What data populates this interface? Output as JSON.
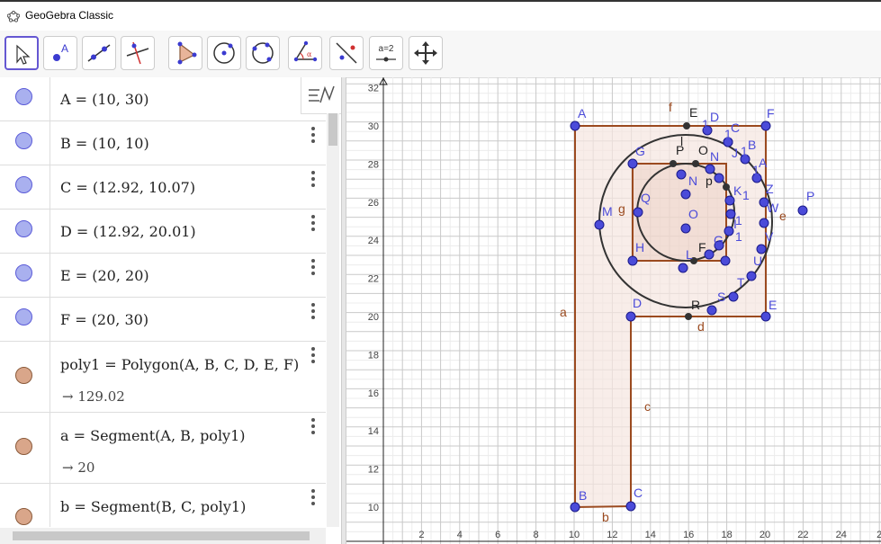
{
  "window": {
    "title": "GeoGebra Classic"
  },
  "toolbar": {
    "tools": [
      {
        "name": "move-tool",
        "label": ""
      },
      {
        "name": "point-tool",
        "label": ""
      },
      {
        "name": "line-tool",
        "label": ""
      },
      {
        "name": "perpendicular-line-tool",
        "label": ""
      },
      {
        "name": "polygon-tool",
        "label": ""
      },
      {
        "name": "circle-center-point-tool",
        "label": ""
      },
      {
        "name": "circle-three-points-tool",
        "label": ""
      },
      {
        "name": "angle-tool",
        "label": ""
      },
      {
        "name": "reflect-tool",
        "label": ""
      },
      {
        "name": "slider-tool",
        "label": "a=2"
      },
      {
        "name": "move-graphics-view-tool",
        "label": ""
      }
    ]
  },
  "algebra": {
    "items": [
      {
        "expr": "A = (10, 30)",
        "kind": "point"
      },
      {
        "expr": "B = (10, 10)",
        "kind": "point"
      },
      {
        "expr": "C = (12.92, 10.07)",
        "kind": "point"
      },
      {
        "expr": "D = (12.92, 20.01)",
        "kind": "point"
      },
      {
        "expr": "E = (20, 20)",
        "kind": "point"
      },
      {
        "expr": "F = (20, 30)",
        "kind": "point"
      },
      {
        "expr": "poly1 = Polygon(A, B, C, D, E, F)",
        "result": "→ 129.02",
        "kind": "polygon"
      },
      {
        "expr": "a = Segment(A, B, poly1)",
        "result": "→ 20",
        "kind": "segment"
      },
      {
        "expr": "b = Segment(B, C, poly1)",
        "kind": "segment"
      }
    ]
  },
  "graphics": {
    "x_ticks": [
      "2",
      "4",
      "6",
      "8",
      "10",
      "12",
      "14",
      "16",
      "18",
      "20",
      "22",
      "24",
      "2"
    ],
    "y_ticks": [
      "32",
      "30",
      "28",
      "26",
      "24",
      "22",
      "20",
      "18",
      "16",
      "14",
      "12",
      "10"
    ],
    "point_labels": [
      "A",
      "F",
      "E",
      "D",
      "R",
      "B",
      "C",
      "G",
      "H",
      "P",
      "Q",
      "M",
      "N",
      "O",
      "V",
      "W",
      "Z",
      "S",
      "T",
      "U",
      "K",
      "L",
      "E",
      "D",
      "C",
      "B",
      "A",
      "J",
      "I",
      "F",
      "G",
      "p",
      "O",
      "P",
      "N",
      "l",
      "1",
      "1",
      "1",
      "1",
      "1",
      "1",
      "1"
    ],
    "object_labels": [
      "a",
      "b",
      "c",
      "d",
      "e",
      "f",
      "g"
    ],
    "colors": {
      "point": "#4b4bd9",
      "polygon_edge": "#9b4a1f",
      "polygon_fill": "#f5e6e0",
      "circle": "#333333"
    }
  }
}
